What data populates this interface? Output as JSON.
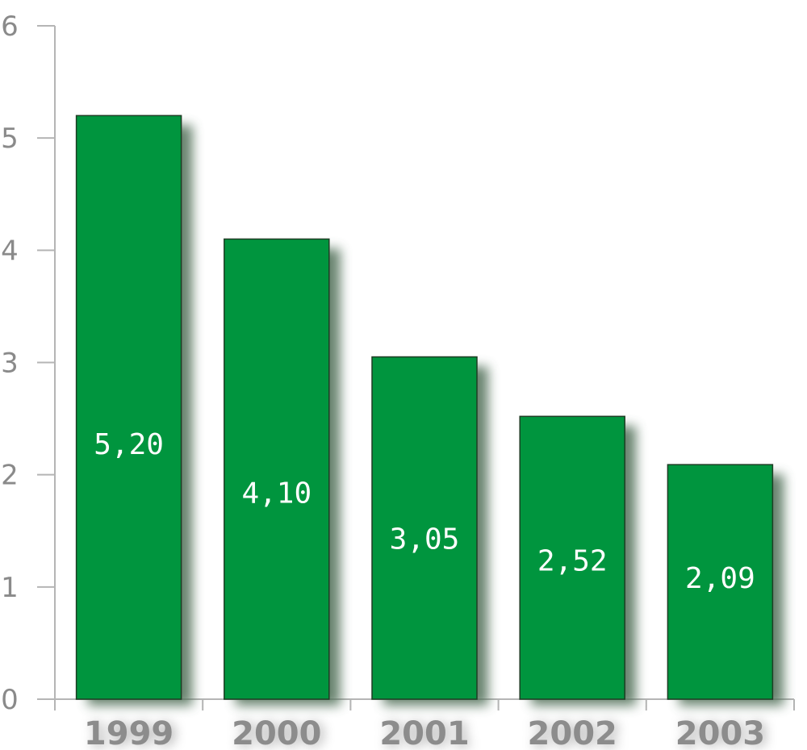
{
  "chart_data": {
    "type": "bar",
    "categories": [
      "1999",
      "2000",
      "2001",
      "2002",
      "2003"
    ],
    "values": [
      5.2,
      4.1,
      3.05,
      2.52,
      2.09
    ],
    "data_labels": [
      "5,20",
      "4,10",
      "3,05",
      "2,52",
      "2,09"
    ],
    "ylim": [
      0,
      6
    ],
    "yticks": [
      "0",
      "1",
      "2",
      "3",
      "4",
      "5",
      "6"
    ],
    "title": "",
    "xlabel": "",
    "ylabel": "",
    "grid": false,
    "legend": "none",
    "colors": {
      "bar": "#00953e",
      "bar_shadow": "#4f6e57",
      "axis": "#b5b5b5",
      "tick_text": "#8a8a8a",
      "category_text": "#8c8c8c",
      "label_text": "#ffffff"
    }
  }
}
